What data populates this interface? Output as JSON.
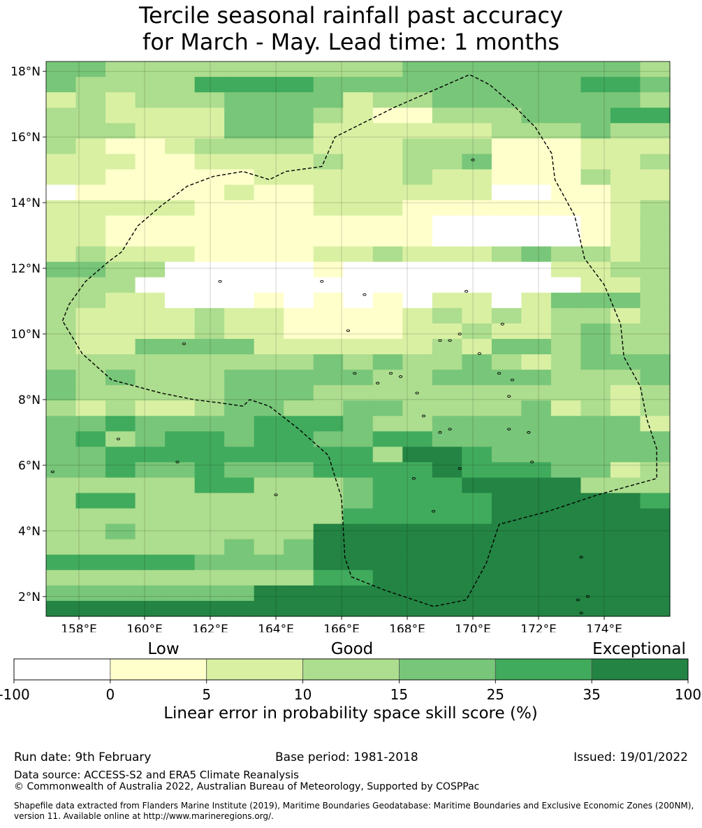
{
  "title_line1": "Tercile seasonal rainfall past accuracy",
  "title_line2": "for March - May. Lead time: 1 months",
  "map": {
    "lat_labels": [
      "18°N",
      "16°N",
      "14°N",
      "12°N",
      "10°N",
      "8°N",
      "6°N",
      "4°N",
      "2°N"
    ],
    "lat_values": [
      18,
      16,
      14,
      12,
      10,
      8,
      6,
      4,
      2
    ],
    "lon_labels": [
      "158°E",
      "160°E",
      "162°E",
      "164°E",
      "166°E",
      "168°E",
      "170°E",
      "172°E",
      "174°E"
    ],
    "lon_values": [
      158,
      160,
      162,
      164,
      166,
      168,
      170,
      172,
      174
    ],
    "extent": {
      "lon_min": 157.0,
      "lon_max": 176.0,
      "lat_min": 1.4,
      "lat_max": 18.3
    },
    "grid_rows_north_to_south": [
      "443333333333444444443",
      "433335555444444444554",
      "232333444423344444443",
      "332222444321133344455",
      "333222444222222333433",
      "321123333222333111222",
      "222112222322334111223",
      "221111122222322111322",
      "011111211222222001122",
      "222221111222111111123",
      "221111111111100000123",
      "221111111111100000123",
      "232221111223222343323",
      "443300000100000002233",
      "333000000000000000223",
      "332200010101022024443",
      "322223221111232323323",
      "322223221111223223433",
      "322444422222232443433",
      "333333333434334323444",
      "434333444443344443334",
      "433333444333333333323",
      "323223443344333342323",
      "445444455543344444442",
      "453455455445544444444",
      "445555555553665444444",
      "445445444555565554423",
      "333335533345556666333",
      "355333333345555666665",
      "333333333355555666666",
      "334333333666666666666",
      "333333434666666666666",
      "555554444666666666666",
      "333333333556666666666",
      "444444466666666666666",
      "666666666666666666666"
    ],
    "eez_boundary_lonlat": [
      [
        157.5,
        10.4
      ],
      [
        157.7,
        10.9
      ],
      [
        158.2,
        11.6
      ],
      [
        158.9,
        12.2
      ],
      [
        159.3,
        12.5
      ],
      [
        159.8,
        13.3
      ],
      [
        160.5,
        13.9
      ],
      [
        161.3,
        14.5
      ],
      [
        162.1,
        14.8
      ],
      [
        163.0,
        14.95
      ],
      [
        163.8,
        14.7
      ],
      [
        164.3,
        14.95
      ],
      [
        165.4,
        15.1
      ],
      [
        165.8,
        16.0
      ],
      [
        167.6,
        16.9
      ],
      [
        169.9,
        17.9
      ],
      [
        170.5,
        17.6
      ],
      [
        171.2,
        17.0
      ],
      [
        171.9,
        16.3
      ],
      [
        172.4,
        15.5
      ],
      [
        172.5,
        14.7
      ],
      [
        173.1,
        13.6
      ],
      [
        173.4,
        12.3
      ],
      [
        174.0,
        11.5
      ],
      [
        174.5,
        10.3
      ],
      [
        174.6,
        9.3
      ],
      [
        175.1,
        8.4
      ],
      [
        175.3,
        7.4
      ],
      [
        175.6,
        6.5
      ],
      [
        175.6,
        5.6
      ],
      [
        173.8,
        5.1
      ],
      [
        172.3,
        4.6
      ],
      [
        170.8,
        4.2
      ],
      [
        170.4,
        3.0
      ],
      [
        169.8,
        1.9
      ],
      [
        168.8,
        1.7
      ],
      [
        167.3,
        2.2
      ],
      [
        166.3,
        2.6
      ],
      [
        166.1,
        3.2
      ],
      [
        166.0,
        5.0
      ],
      [
        165.6,
        6.3
      ],
      [
        164.7,
        7.1
      ],
      [
        163.8,
        7.8
      ],
      [
        163.2,
        8.0
      ],
      [
        163.0,
        7.8
      ],
      [
        162.3,
        7.9
      ],
      [
        161.5,
        8.0
      ],
      [
        160.5,
        8.2
      ],
      [
        159.0,
        8.6
      ],
      [
        158.1,
        9.4
      ],
      [
        157.5,
        10.4
      ]
    ],
    "islands_lonlat": [
      [
        159.2,
        6.8
      ],
      [
        164.0,
        5.1
      ],
      [
        161.0,
        6.1
      ],
      [
        157.2,
        5.8
      ],
      [
        166.2,
        10.1
      ],
      [
        166.4,
        8.8
      ],
      [
        167.1,
        8.5
      ],
      [
        167.5,
        8.8
      ],
      [
        167.8,
        8.7
      ],
      [
        168.3,
        8.2
      ],
      [
        168.5,
        7.5
      ],
      [
        169.0,
        7.0
      ],
      [
        169.3,
        7.1
      ],
      [
        169.0,
        9.8
      ],
      [
        169.3,
        9.8
      ],
      [
        170.2,
        9.4
      ],
      [
        170.8,
        8.8
      ],
      [
        171.2,
        8.6
      ],
      [
        171.1,
        8.1
      ],
      [
        171.1,
        7.1
      ],
      [
        171.7,
        7.0
      ],
      [
        171.8,
        6.1
      ],
      [
        169.6,
        5.9
      ],
      [
        168.2,
        5.6
      ],
      [
        168.8,
        4.6
      ],
      [
        173.3,
        3.2
      ],
      [
        173.2,
        1.9
      ],
      [
        173.5,
        2.0
      ],
      [
        173.3,
        1.5
      ],
      [
        170.9,
        10.3
      ],
      [
        169.8,
        11.3
      ],
      [
        162.3,
        11.6
      ],
      [
        165.4,
        11.6
      ],
      [
        166.7,
        11.2
      ],
      [
        170.0,
        15.3
      ],
      [
        161.2,
        9.7
      ],
      [
        169.6,
        10.0
      ]
    ]
  },
  "colorbar": {
    "category_labels": [
      "Low",
      "Good",
      "Exceptional"
    ],
    "tick_labels": [
      "-100",
      "0",
      "5",
      "10",
      "15",
      "25",
      "35",
      "100"
    ],
    "colors": [
      "#ffffff",
      "#ffffcc",
      "#d9f0a3",
      "#addd8e",
      "#78c679",
      "#41ab5d",
      "#238443"
    ],
    "axis_label": "Linear error in probability space skill score (%)"
  },
  "footer": {
    "run_date": "Run date: 9th February",
    "base_period": "Base period: 1981-2018",
    "issued": "Issued: 19/01/2022",
    "data_source": "Data source: ACCESS-S2 and ERA5 Climate Reanalysis",
    "copyright": "© Commonwealth of Australia 2022, Australian Bureau of Meteorology, Supported by COSPPac",
    "shapefile_line1": "Shapefile data extracted from Flanders Marine Institute (2019), Maritime Boundaries Geodatabase: Maritime Boundaries and Exclusive Economic Zones (200NM),",
    "shapefile_line2": "version 11. Available online at http://www.marineregions.org/."
  }
}
